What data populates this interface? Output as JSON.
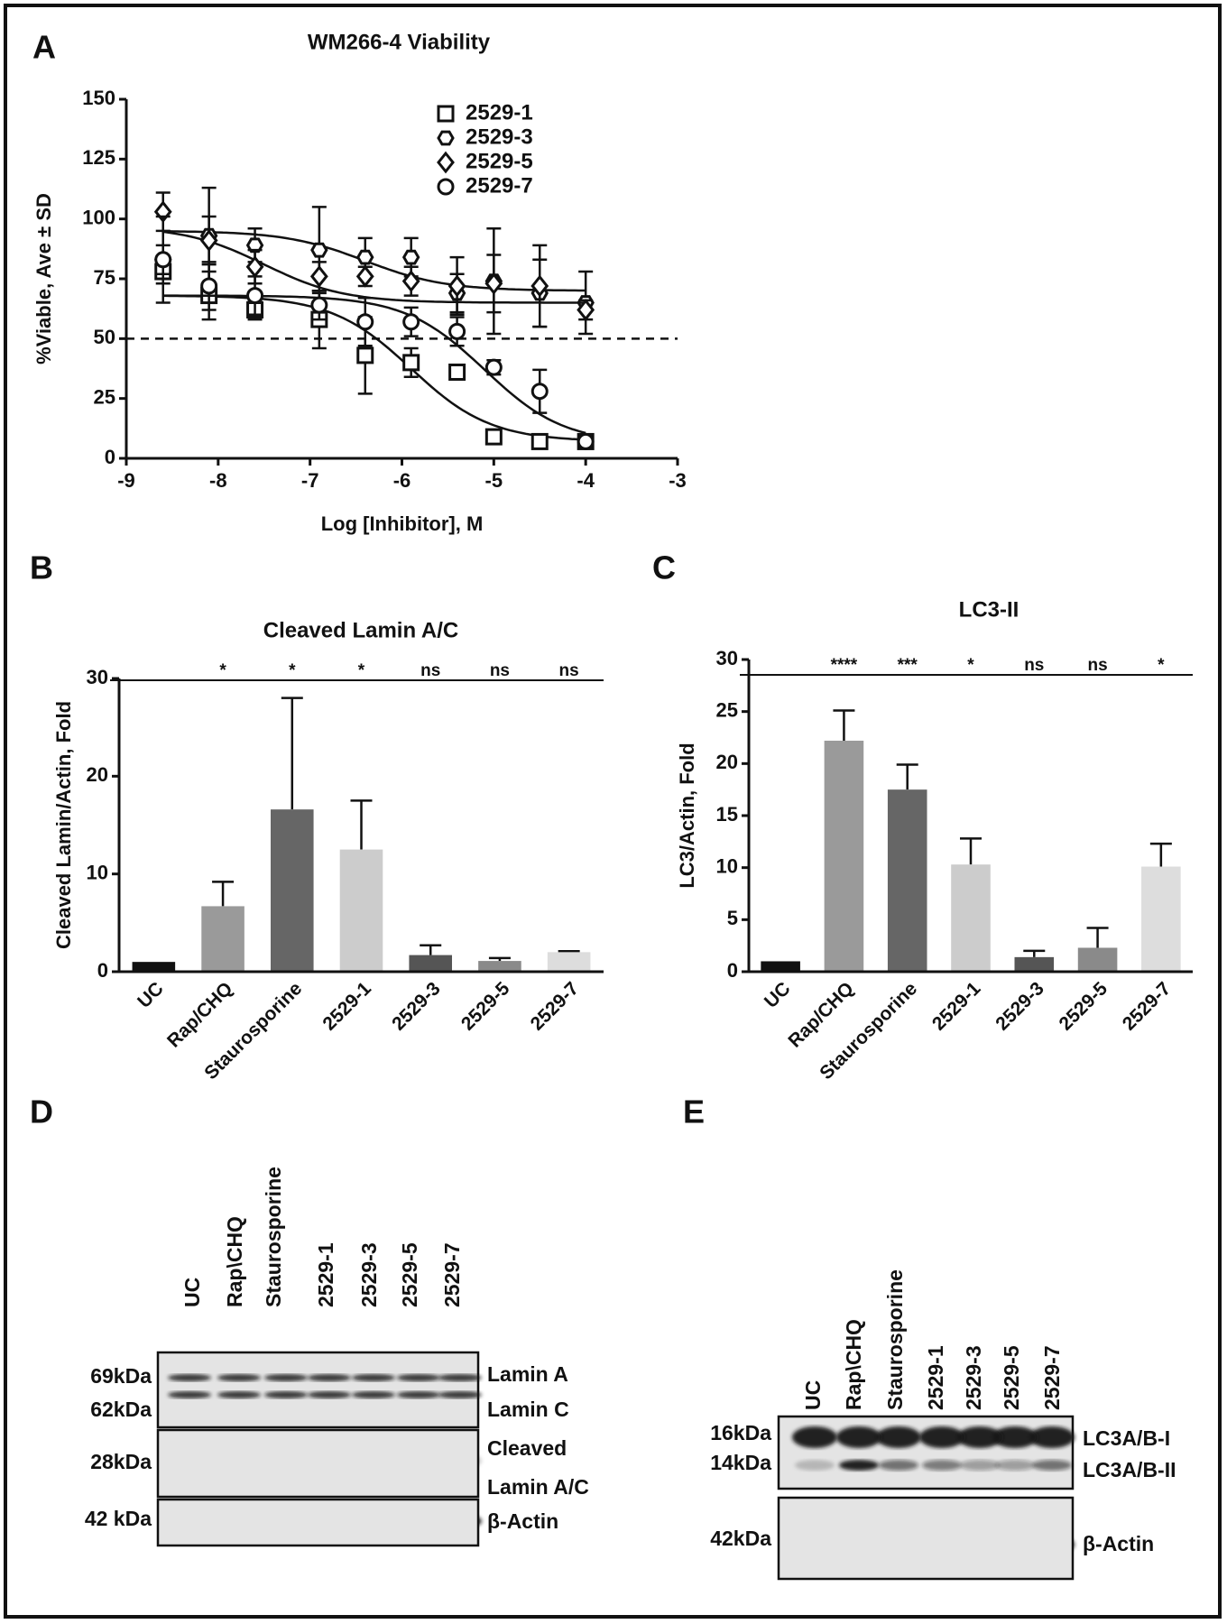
{
  "panel_labels": [
    "A",
    "B",
    "C",
    "D",
    "E"
  ],
  "chart_data": [
    {
      "type": "scatter",
      "title": "WM266-4 Viability",
      "xlabel": "Log [Inhibitor], M",
      "ylabel": "%Viable, Ave ± SD",
      "xlim": [
        -9,
        -3
      ],
      "xticks": [
        -9,
        -8,
        -7,
        -6,
        -5,
        -4,
        -3
      ],
      "ylim": [
        0,
        150
      ],
      "yticks": [
        0,
        25,
        50,
        75,
        100,
        125,
        150
      ],
      "reference_line": 50,
      "series": [
        {
          "name": "2529-1",
          "marker": "square",
          "color": "#111111",
          "x": [
            -8.6,
            -8.1,
            -7.6,
            -6.9,
            -6.4,
            -5.9,
            -5.4,
            -5.0,
            -4.5,
            -4.0
          ],
          "values": [
            78,
            68,
            62,
            58,
            43,
            40,
            36,
            9,
            7,
            7
          ],
          "errors": [
            5,
            10,
            4,
            12,
            16,
            6,
            3,
            2,
            1,
            1
          ],
          "fit": {
            "top": 68,
            "bottom": 7,
            "logec50": -5.9,
            "hillslope": -1
          }
        },
        {
          "name": "2529-3",
          "marker": "hexagon",
          "color": "#111111",
          "x": [
            -8.6,
            -8.1,
            -7.6,
            -6.9,
            -6.4,
            -5.9,
            -5.4,
            -5.0,
            -4.5,
            -4.0
          ],
          "values": [
            83,
            93,
            89,
            87,
            84,
            84,
            69,
            74,
            69,
            65
          ],
          "errors": [
            6,
            20,
            7,
            18,
            8,
            8,
            8,
            22,
            14,
            13
          ],
          "fit": {
            "top": 95,
            "bottom": 70,
            "logec50": -6.4,
            "hillslope": -1
          }
        },
        {
          "name": "2529-5",
          "marker": "diamond",
          "color": "#111111",
          "x": [
            -8.6,
            -8.1,
            -7.6,
            -6.9,
            -6.4,
            -5.9,
            -5.4,
            -5.0,
            -4.5,
            -4.0
          ],
          "values": [
            103,
            91,
            80,
            76,
            76,
            74,
            72,
            73,
            72,
            62
          ],
          "errors": [
            8,
            10,
            7,
            6,
            4,
            6,
            12,
            12,
            17,
            4
          ],
          "fit": {
            "top": 97,
            "bottom": 65,
            "logec50": -7.5,
            "hillslope": -1
          }
        },
        {
          "name": "2529-7",
          "marker": "circle",
          "color": "#111111",
          "x": [
            -8.6,
            -8.1,
            -7.6,
            -6.9,
            -6.4,
            -5.9,
            -5.4,
            -5.0,
            -4.5,
            -4.0
          ],
          "values": [
            83,
            72,
            68,
            64,
            57,
            57,
            53,
            38,
            28,
            7
          ],
          "errors": [
            18,
            10,
            8,
            6,
            10,
            6,
            6,
            3,
            9,
            2
          ],
          "fit": {
            "top": 68,
            "bottom": 6,
            "logec50": -5.1,
            "hillslope": -1
          }
        }
      ]
    },
    {
      "type": "bar",
      "title": "Cleaved Lamin A/C",
      "ylabel": "Cleaved Lamin/Actin, Fold",
      "categories": [
        "UC",
        "Rap/CHQ",
        "Staurosporine",
        "2529-1",
        "2529-3",
        "2529-5",
        "2529-7"
      ],
      "values": [
        1,
        6.7,
        16.6,
        12.5,
        1.7,
        1.1,
        2.0
      ],
      "errors": [
        0,
        2.5,
        11.4,
        5.0,
        1.0,
        0.3,
        0.1
      ],
      "colors": [
        "#111111",
        "#9a9a9a",
        "#666666",
        "#cccccc",
        "#555555",
        "#8a8a8a",
        "#dddddd"
      ],
      "significance": [
        null,
        "*",
        "*",
        "*",
        "ns",
        "ns",
        "ns"
      ],
      "ylim": [
        0,
        30
      ],
      "yticks": [
        0,
        10,
        20,
        30
      ]
    },
    {
      "type": "bar",
      "title": "LC3-II",
      "ylabel": "LC3/Actin, Fold",
      "categories": [
        "UC",
        "Rap/CHQ",
        "Staurosporine",
        "2529-1",
        "2529-3",
        "2529-5",
        "2529-7"
      ],
      "values": [
        1,
        22.2,
        17.5,
        10.3,
        1.4,
        2.3,
        10.1
      ],
      "errors": [
        0,
        2.9,
        2.4,
        2.5,
        0.6,
        1.9,
        2.2
      ],
      "colors": [
        "#111111",
        "#9a9a9a",
        "#666666",
        "#cccccc",
        "#555555",
        "#8a8a8a",
        "#dddddd"
      ],
      "significance": [
        null,
        "****",
        "***",
        "*",
        "ns",
        "ns",
        "*"
      ],
      "ylim": [
        0,
        30
      ],
      "yticks": [
        0,
        5,
        10,
        15,
        20,
        25,
        30
      ]
    }
  ],
  "blots": [
    {
      "lanes": [
        "UC",
        "Rap\\CHQ",
        "Staurosporine",
        "2529-1",
        "2529-3",
        "2529-5",
        "2529-7"
      ],
      "sizes": [
        "69kDa",
        "62kDa",
        "28kDa",
        "42 kDa"
      ],
      "bands": [
        "Lamin A",
        "Lamin C",
        "Cleaved",
        "Lamin A/C",
        "β-Actin"
      ]
    },
    {
      "lanes": [
        "UC",
        "Rap\\CHQ",
        "Staurosporine",
        "2529-1",
        "2529-3",
        "2529-5",
        "2529-7"
      ],
      "sizes": [
        "16kDa",
        "14kDa",
        "42kDa"
      ],
      "bands": [
        "LC3A/B-I",
        "LC3A/B-II",
        "β-Actin"
      ]
    }
  ]
}
